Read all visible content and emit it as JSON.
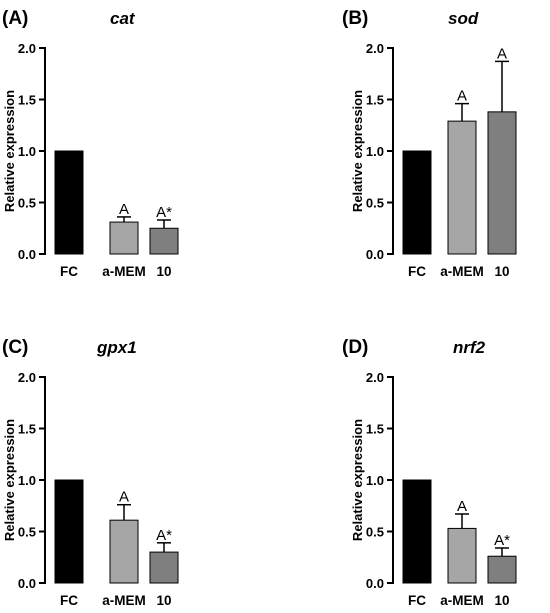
{
  "chart_data": [
    {
      "type": "bar",
      "panel_label": "(A)",
      "title": "cat",
      "ylabel": "Relative expression",
      "ylim": [
        0,
        2.0
      ],
      "yticks": [
        "0.0",
        "0.5",
        "1.0",
        "1.5",
        "2.0"
      ],
      "categories": [
        "FC",
        "a-MEM",
        "10"
      ],
      "values": [
        1.0,
        0.31,
        0.25
      ],
      "errors": [
        0,
        0.05,
        0.08
      ],
      "annotations": [
        "",
        "A",
        "A*"
      ],
      "colors": [
        "#000000",
        "#a6a6a6",
        "#7f7f7f"
      ],
      "grid": false
    },
    {
      "type": "bar",
      "panel_label": "(B)",
      "title": "sod",
      "ylabel": "Relative expression",
      "ylim": [
        0,
        2.0
      ],
      "yticks": [
        "0.0",
        "0.5",
        "1.0",
        "1.5",
        "2.0"
      ],
      "categories": [
        "FC",
        "a-MEM",
        "10"
      ],
      "values": [
        1.0,
        1.29,
        1.38
      ],
      "errors": [
        0,
        0.17,
        0.49
      ],
      "annotations": [
        "",
        "A",
        "A"
      ],
      "colors": [
        "#000000",
        "#a6a6a6",
        "#7f7f7f"
      ],
      "grid": false
    },
    {
      "type": "bar",
      "panel_label": "(C)",
      "title": "gpx1",
      "ylabel": "Relative expression",
      "ylim": [
        0,
        2.0
      ],
      "yticks": [
        "0.0",
        "0.5",
        "1.0",
        "1.5",
        "2.0"
      ],
      "categories": [
        "FC",
        "a-MEM",
        "10"
      ],
      "values": [
        1.0,
        0.61,
        0.3
      ],
      "errors": [
        0,
        0.15,
        0.09
      ],
      "annotations": [
        "",
        "A",
        "A*"
      ],
      "colors": [
        "#000000",
        "#a6a6a6",
        "#7f7f7f"
      ],
      "grid": false
    },
    {
      "type": "bar",
      "panel_label": "(D)",
      "title": "nrf2",
      "ylabel": "Relative expression",
      "ylim": [
        0,
        2.0
      ],
      "yticks": [
        "0.0",
        "0.5",
        "1.0",
        "1.5",
        "2.0"
      ],
      "categories": [
        "FC",
        "a-MEM",
        "10"
      ],
      "values": [
        1.0,
        0.53,
        0.26
      ],
      "errors": [
        0,
        0.14,
        0.08
      ],
      "annotations": [
        "",
        "A",
        "A*"
      ],
      "colors": [
        "#000000",
        "#a6a6a6",
        "#7f7f7f"
      ],
      "grid": false
    }
  ]
}
